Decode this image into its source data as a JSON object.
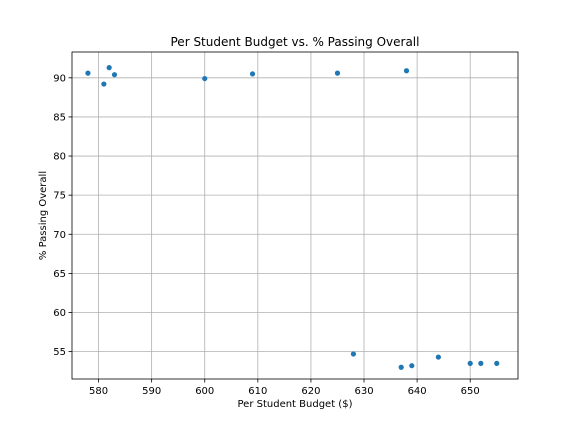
{
  "chart_data": {
    "type": "scatter",
    "title": "Per Student Budget vs. % Passing Overall",
    "xlabel": "Per Student Budget ($)",
    "ylabel": "% Passing Overall",
    "xlim": [
      575,
      659
    ],
    "ylim": [
      51.5,
      93.3
    ],
    "xticks": [
      580,
      590,
      600,
      610,
      620,
      630,
      640,
      650
    ],
    "yticks": [
      55,
      60,
      65,
      70,
      75,
      80,
      85,
      90
    ],
    "grid": true,
    "marker_color": "#1f77b4",
    "points": [
      {
        "x": 578,
        "y": 90.6
      },
      {
        "x": 581,
        "y": 89.2
      },
      {
        "x": 582,
        "y": 91.3
      },
      {
        "x": 583,
        "y": 90.4
      },
      {
        "x": 600,
        "y": 89.9
      },
      {
        "x": 609,
        "y": 90.5
      },
      {
        "x": 625,
        "y": 90.6
      },
      {
        "x": 628,
        "y": 54.7
      },
      {
        "x": 637,
        "y": 53.0
      },
      {
        "x": 638,
        "y": 90.9
      },
      {
        "x": 639,
        "y": 53.2
      },
      {
        "x": 644,
        "y": 54.3
      },
      {
        "x": 650,
        "y": 53.5
      },
      {
        "x": 652,
        "y": 53.5
      },
      {
        "x": 655,
        "y": 53.5
      }
    ]
  }
}
